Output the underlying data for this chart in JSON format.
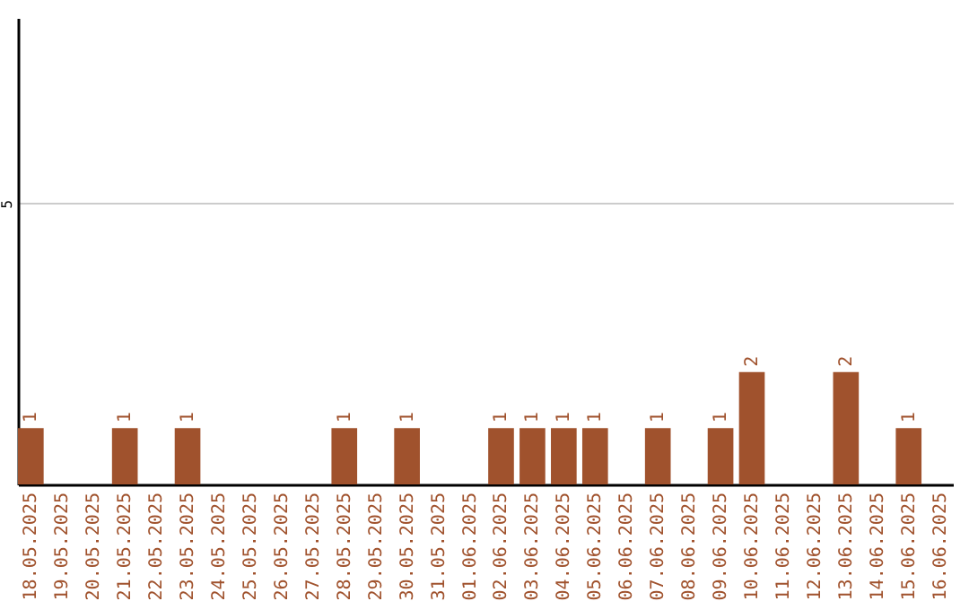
{
  "chart_data": {
    "type": "bar",
    "categories": [
      "18.05.2025",
      "19.05.2025",
      "20.05.2025",
      "21.05.2025",
      "22.05.2025",
      "23.05.2025",
      "24.05.2025",
      "25.05.2025",
      "26.05.2025",
      "27.05.2025",
      "28.05.2025",
      "29.05.2025",
      "30.05.2025",
      "31.05.2025",
      "01.06.2025",
      "02.06.2025",
      "03.06.2025",
      "04.06.2025",
      "05.06.2025",
      "06.06.2025",
      "07.06.2025",
      "08.06.2025",
      "09.06.2025",
      "10.06.2025",
      "11.06.2025",
      "12.06.2025",
      "13.06.2025",
      "14.06.2025",
      "15.06.2025",
      "16.06.2025"
    ],
    "values": [
      1,
      0,
      0,
      1,
      0,
      1,
      0,
      0,
      0,
      0,
      1,
      0,
      1,
      0,
      0,
      1,
      1,
      1,
      1,
      0,
      1,
      0,
      1,
      2,
      0,
      0,
      2,
      0,
      1,
      0
    ],
    "value_labels": [
      "1",
      null,
      null,
      "1",
      null,
      "1",
      null,
      null,
      null,
      null,
      "1",
      null,
      "1",
      null,
      null,
      "1",
      "1",
      "1",
      "1",
      null,
      "1",
      null,
      "1",
      "2",
      null,
      null,
      "2",
      null,
      "1",
      null
    ],
    "color": "#a0522d",
    "ylim": [
      0,
      8.3
    ],
    "yticks": [
      5
    ],
    "grid": "y"
  }
}
